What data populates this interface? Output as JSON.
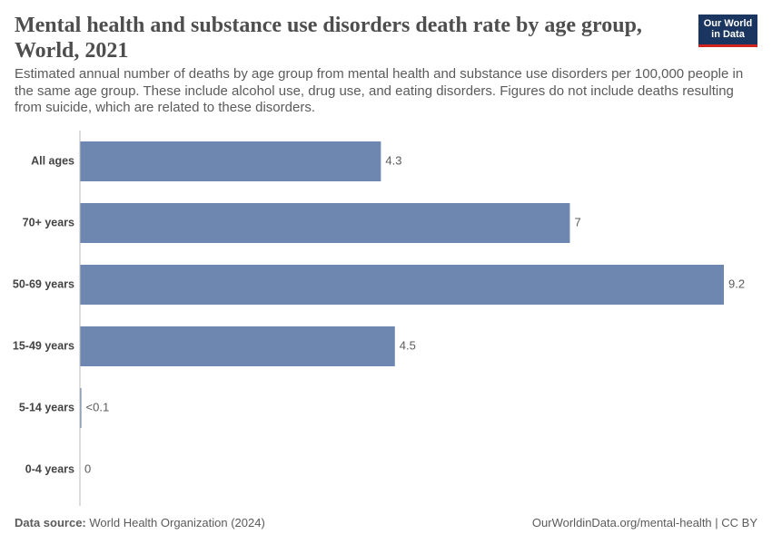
{
  "chart_data": {
    "type": "hbar",
    "title": "Mental health and substance use disorders death rate by age group, World, 2021",
    "subtitle": "Estimated annual number of deaths by age group from mental health and substance use disorders per 100,000 people in the same age group. These include alcohol use, drug use, and eating disorders. Figures do not include deaths resulting from suicide, which are related to these disorders.",
    "categories": [
      "All ages",
      "70+ years",
      "50-69 years",
      "15-49 years",
      "5-14 years",
      "0-4 years"
    ],
    "values": [
      4.3,
      7,
      9.2,
      4.5,
      0.02,
      0
    ],
    "value_labels": [
      "4.3",
      "7",
      "9.2",
      "4.5",
      "<0.1",
      "0"
    ],
    "color": "#6d87b0",
    "xlim": [
      0,
      9.2
    ],
    "source_label": "Data source:",
    "source": "World Health Organization (2024)",
    "url": "OurWorldinData.org/mental-health | CC BY",
    "logo": [
      "Our World",
      "in Data"
    ]
  }
}
